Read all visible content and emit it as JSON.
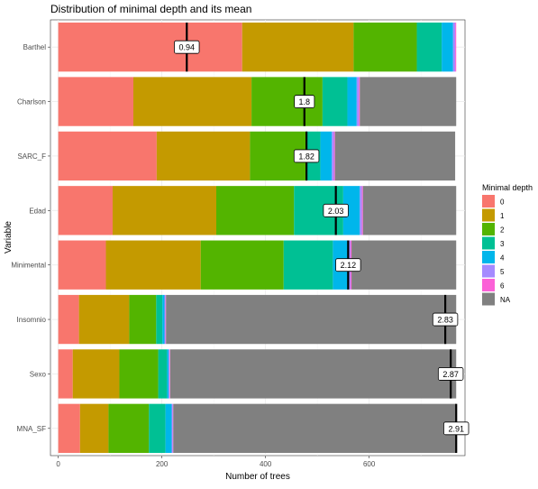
{
  "chart_data": {
    "type": "bar",
    "orientation": "horizontal",
    "stacked": true,
    "title": "Distribution of minimal depth and its mean",
    "xlabel": "Number of trees",
    "ylabel": "Variable",
    "xlim": [
      -15,
      785
    ],
    "xticks": [
      0,
      200,
      400,
      600
    ],
    "grid": true,
    "legend_position": "right",
    "legend_title": "Minimal depth",
    "categories": [
      "Barthel",
      "Charlson",
      "SARC_F",
      "Edad",
      "Minimental",
      "Insomnio",
      "Sexo",
      "MNA_SF"
    ],
    "series": [
      {
        "name": "0",
        "color": "#F8766D",
        "values": [
          355,
          145,
          190,
          105,
          92,
          40,
          28,
          42
        ]
      },
      {
        "name": "1",
        "color": "#C49A00",
        "values": [
          215,
          228,
          180,
          200,
          183,
          97,
          90,
          55
        ]
      },
      {
        "name": "2",
        "color": "#53B400",
        "values": [
          122,
          137,
          108,
          150,
          160,
          52,
          75,
          78
        ]
      },
      {
        "name": "3",
        "color": "#00C094",
        "values": [
          48,
          48,
          28,
          95,
          95,
          12,
          17,
          32
        ]
      },
      {
        "name": "4",
        "color": "#00B6EB",
        "values": [
          22,
          18,
          22,
          32,
          30,
          4,
          3,
          12
        ]
      },
      {
        "name": "5",
        "color": "#A58AFF",
        "values": [
          4,
          4,
          4,
          4,
          4,
          2,
          2,
          2
        ]
      },
      {
        "name": "6",
        "color": "#FB61D7",
        "values": [
          2,
          2,
          2,
          2,
          2,
          1,
          1,
          1
        ]
      },
      {
        "name": "NA",
        "color": "#808080",
        "values": [
          0,
          186,
          232,
          180,
          202,
          560,
          552,
          546
        ]
      }
    ],
    "means": [
      0.94,
      1.8,
      1.82,
      2.03,
      2.12,
      2.83,
      2.87,
      2.91
    ],
    "mean_labels": [
      "0.94",
      "1.8",
      "1.82",
      "2.03",
      "2.12",
      "2.83",
      "2.87",
      "2.91"
    ]
  }
}
